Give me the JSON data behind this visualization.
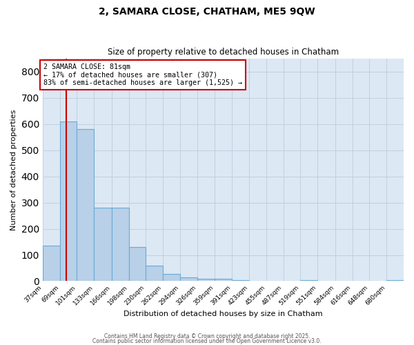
{
  "title": "2, SAMARA CLOSE, CHATHAM, ME5 9QW",
  "subtitle": "Size of property relative to detached houses in Chatham",
  "xlabel": "Distribution of detached houses by size in Chatham",
  "ylabel": "Number of detached properties",
  "bar_color": "#b8d0e8",
  "bar_edge_color": "#6aaad4",
  "bin_edges": [
    37,
    69,
    101,
    133,
    166,
    198,
    230,
    262,
    294,
    326,
    359,
    391,
    423,
    455,
    487,
    519,
    551,
    584,
    616,
    648,
    680,
    712
  ],
  "bar_heights": [
    135,
    610,
    580,
    280,
    280,
    130,
    60,
    28,
    15,
    10,
    10,
    5,
    0,
    0,
    0,
    5,
    0,
    0,
    0,
    0,
    5
  ],
  "tick_labels": [
    "37sqm",
    "69sqm",
    "101sqm",
    "133sqm",
    "166sqm",
    "198sqm",
    "230sqm",
    "262sqm",
    "294sqm",
    "326sqm",
    "359sqm",
    "391sqm",
    "423sqm",
    "455sqm",
    "487sqm",
    "519sqm",
    "551sqm",
    "584sqm",
    "616sqm",
    "648sqm",
    "680sqm"
  ],
  "red_line_x": 81,
  "red_line_color": "#cc0000",
  "ylim": [
    0,
    850
  ],
  "annotation_text": "2 SAMARA CLOSE: 81sqm\n← 17% of detached houses are smaller (307)\n83% of semi-detached houses are larger (1,525) →",
  "annotation_box_color": "#ffffff",
  "annotation_box_edge": "#cc0000",
  "grid_color": "#c0d0e0",
  "background_color": "#dce8f4",
  "footer_text1": "Contains HM Land Registry data © Crown copyright and database right 2025.",
  "footer_text2": "Contains public sector information licensed under the Open Government Licence v3.0."
}
